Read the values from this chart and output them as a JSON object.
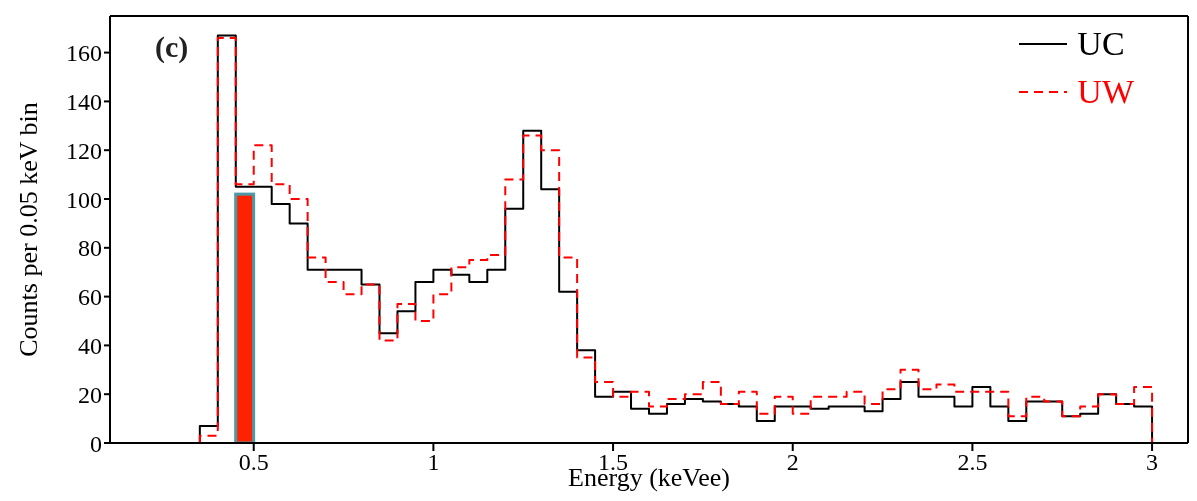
{
  "chart_data": {
    "type": "histogram",
    "xlabel": "Energy (keVee)",
    "ylabel": "Counts per 0.05 keV bin",
    "annotations": [
      "(c)"
    ],
    "bins": [
      0.35,
      0.4,
      0.45,
      0.5,
      0.55,
      0.6,
      0.65,
      0.7,
      0.75,
      0.8,
      0.85,
      0.9,
      0.95,
      1.0,
      1.05,
      1.1,
      1.15,
      1.2,
      1.25,
      1.3,
      1.35,
      1.4,
      1.45,
      1.5,
      1.55,
      1.6,
      1.65,
      1.7,
      1.75,
      1.8,
      1.85,
      1.9,
      1.95,
      2.0,
      2.05,
      2.1,
      2.15,
      2.2,
      2.25,
      2.3,
      2.35,
      2.4,
      2.45,
      2.5,
      2.55,
      2.6,
      2.65,
      2.7,
      2.75,
      2.8,
      2.85,
      2.9,
      2.95,
      3.0
    ],
    "series": [
      {
        "type": "bar",
        "color": "#ff2200",
        "x": [
          0.475
        ],
        "values": [
          102
        ]
      },
      {
        "name": "UC",
        "color": "#000000",
        "line_style": "solid",
        "values": [
          7,
          167,
          105,
          105,
          98,
          90,
          71,
          71,
          71,
          65,
          45,
          54,
          66,
          71,
          69,
          66,
          71,
          96,
          128,
          104,
          62,
          38,
          19,
          21,
          14,
          12,
          16,
          18,
          17,
          16,
          15,
          9,
          15,
          15,
          14,
          15,
          15,
          13,
          18,
          25,
          19,
          19,
          15,
          23,
          15,
          9,
          17,
          17,
          11,
          12,
          20,
          16,
          15
        ]
      },
      {
        "name": "UW",
        "color": "#ff0000",
        "line_style": "dashed",
        "values": [
          3,
          166,
          106,
          122,
          106,
          100,
          76,
          66,
          61,
          65,
          42,
          57,
          50,
          61,
          72,
          75,
          77,
          108,
          126,
          120,
          76,
          35,
          25,
          19,
          21,
          15,
          18,
          20,
          25,
          16,
          21,
          12,
          19,
          12,
          19,
          19,
          21,
          16,
          22,
          30,
          22,
          24,
          21,
          21,
          21,
          11,
          19,
          17,
          11,
          15,
          20,
          16,
          23
        ]
      }
    ],
    "xlim": [
      0.1,
      3.1
    ],
    "xticks": [
      0.5,
      1,
      1.5,
      2,
      2.5,
      3
    ],
    "ylim": [
      0,
      175
    ],
    "yticks": [
      0,
      20,
      40,
      60,
      80,
      100,
      120,
      140,
      160
    ],
    "legend": "top right"
  }
}
